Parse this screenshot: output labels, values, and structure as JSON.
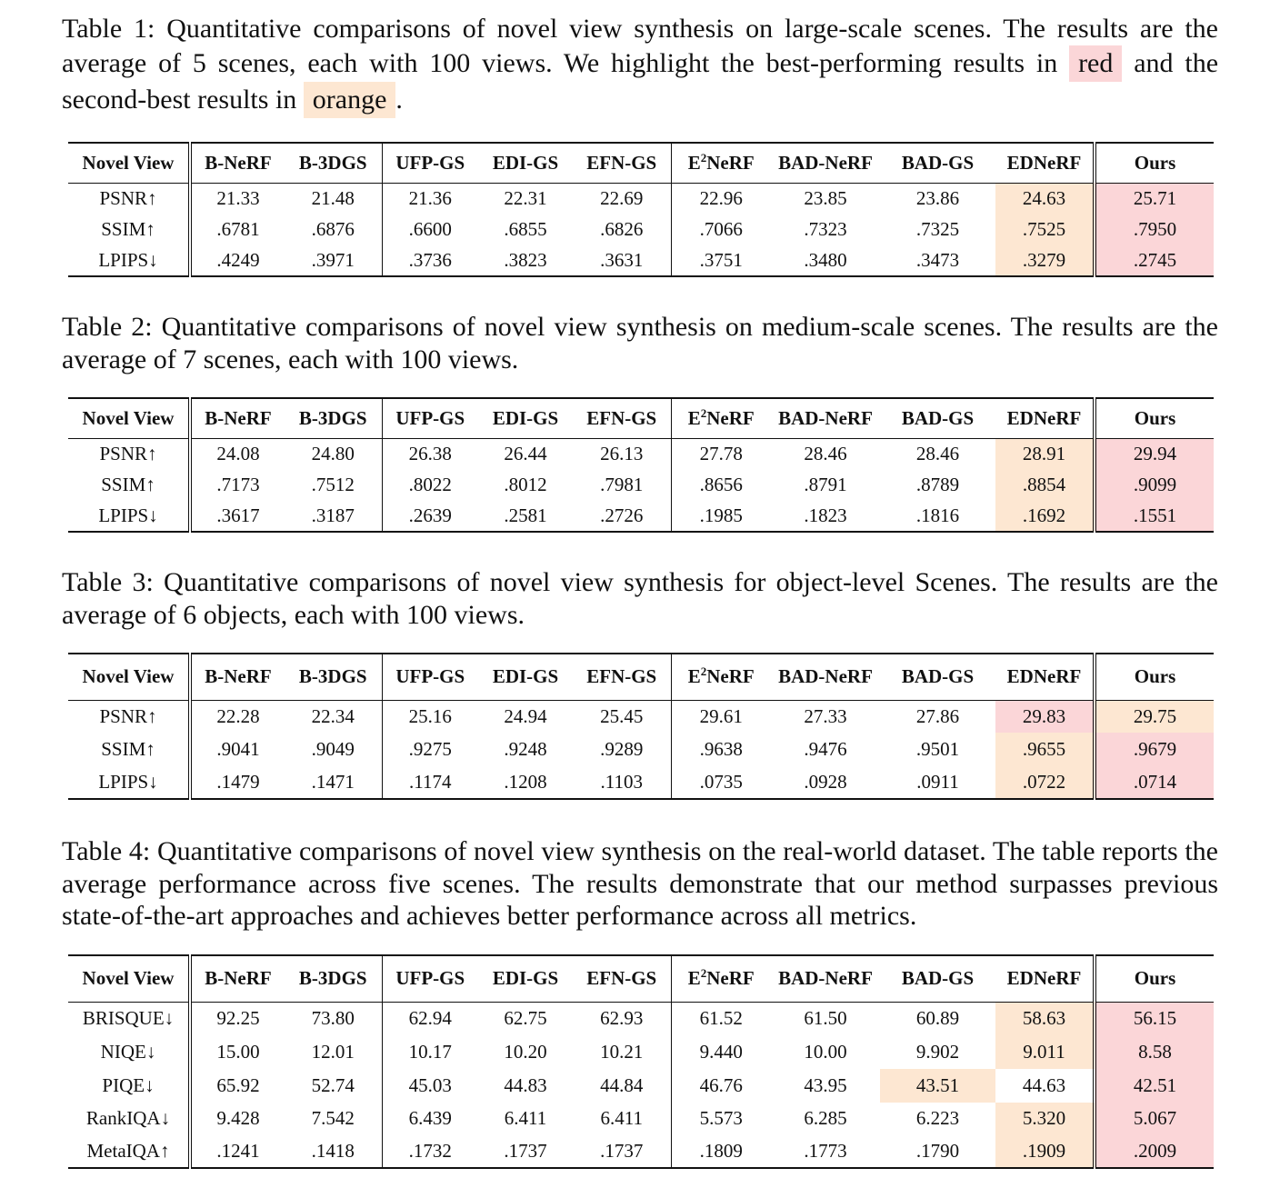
{
  "header": [
    "Novel View",
    "B-NeRF",
    "B-3DGS",
    "UFP-GS",
    "EDI-GS",
    "EFN-GS",
    "E2NeRF",
    "BAD-NeRF",
    "BAD-GS",
    "EDNeRF",
    "Ours"
  ],
  "legend": {
    "best_color": "#fbd6d8",
    "second_color": "#fde7d2"
  },
  "tables": [
    {
      "caption_before": "Table 1: Quantitative comparisons of novel view synthesis on large-scale scenes. The results are the average of 5 scenes, each with 100 views. We highlight the best-performing results in ",
      "caption_red": "red",
      "caption_mid": " and the second-best results in ",
      "caption_orange": "orange",
      "caption_after": ".",
      "rows": [
        {
          "metric": "PSNR↑",
          "values": [
            "21.33",
            "21.48",
            "21.36",
            "22.31",
            "22.69",
            "22.96",
            "23.85",
            "23.86",
            "24.63",
            "25.71"
          ]
        },
        {
          "metric": "SSIM↑",
          "values": [
            ".6781",
            ".6876",
            ".6600",
            ".6855",
            ".6826",
            ".7066",
            ".7323",
            ".7325",
            ".7525",
            ".7950"
          ]
        },
        {
          "metric": "LPIPS↓",
          "values": [
            ".4249",
            ".3971",
            ".3736",
            ".3823",
            ".3631",
            ".3751",
            ".3480",
            ".3473",
            ".3279",
            ".2745"
          ]
        }
      ],
      "highlights": [
        [
          "",
          "",
          "",
          "",
          "",
          "",
          "",
          "",
          "second",
          "best"
        ],
        [
          "",
          "",
          "",
          "",
          "",
          "",
          "",
          "",
          "second",
          "best"
        ],
        [
          "",
          "",
          "",
          "",
          "",
          "",
          "",
          "",
          "second",
          "best"
        ]
      ]
    },
    {
      "caption": "Table 2: Quantitative comparisons of novel view synthesis on medium-scale scenes. The results are the average of 7 scenes, each with 100 views.",
      "rows": [
        {
          "metric": "PSNR↑",
          "values": [
            "24.08",
            "24.80",
            "26.38",
            "26.44",
            "26.13",
            "27.78",
            "28.46",
            "28.46",
            "28.91",
            "29.94"
          ]
        },
        {
          "metric": "SSIM↑",
          "values": [
            ".7173",
            ".7512",
            ".8022",
            ".8012",
            ".7981",
            ".8656",
            ".8791",
            ".8789",
            ".8854",
            ".9099"
          ]
        },
        {
          "metric": "LPIPS↓",
          "values": [
            ".3617",
            ".3187",
            ".2639",
            ".2581",
            ".2726",
            ".1985",
            ".1823",
            ".1816",
            ".1692",
            ".1551"
          ]
        }
      ],
      "highlights": [
        [
          "",
          "",
          "",
          "",
          "",
          "",
          "",
          "",
          "second",
          "best"
        ],
        [
          "",
          "",
          "",
          "",
          "",
          "",
          "",
          "",
          "second",
          "best"
        ],
        [
          "",
          "",
          "",
          "",
          "",
          "",
          "",
          "",
          "second",
          "best"
        ]
      ]
    },
    {
      "caption": "Table 3: Quantitative comparisons of novel view synthesis for object-level Scenes. The results are the average of 6 objects, each with 100 views.",
      "rows": [
        {
          "metric": "PSNR↑",
          "values": [
            "22.28",
            "22.34",
            "25.16",
            "24.94",
            "25.45",
            "29.61",
            "27.33",
            "27.86",
            "29.83",
            "29.75"
          ]
        },
        {
          "metric": "SSIM↑",
          "values": [
            ".9041",
            ".9049",
            ".9275",
            ".9248",
            ".9289",
            ".9638",
            ".9476",
            ".9501",
            ".9655",
            ".9679"
          ]
        },
        {
          "metric": "LPIPS↓",
          "values": [
            ".1479",
            ".1471",
            ".1174",
            ".1208",
            ".1103",
            ".0735",
            ".0928",
            ".0911",
            ".0722",
            ".0714"
          ]
        }
      ],
      "highlights": [
        [
          "",
          "",
          "",
          "",
          "",
          "",
          "",
          "",
          "best",
          "second"
        ],
        [
          "",
          "",
          "",
          "",
          "",
          "",
          "",
          "",
          "second",
          "best"
        ],
        [
          "",
          "",
          "",
          "",
          "",
          "",
          "",
          "",
          "second",
          "best"
        ]
      ]
    },
    {
      "caption": "Table 4: Quantitative comparisons of novel view synthesis on the real-world dataset. The table reports the average performance across five scenes. The results demonstrate that our method surpasses previous state-of-the-art approaches and achieves better performance across all metrics.",
      "rows": [
        {
          "metric": "BRISQUE↓",
          "values": [
            "92.25",
            "73.80",
            "62.94",
            "62.75",
            "62.93",
            "61.52",
            "61.50",
            "60.89",
            "58.63",
            "56.15"
          ]
        },
        {
          "metric": "NIQE↓",
          "values": [
            "15.00",
            "12.01",
            "10.17",
            "10.20",
            "10.21",
            "9.440",
            "10.00",
            "9.902",
            "9.011",
            "8.58"
          ]
        },
        {
          "metric": "PIQE↓",
          "values": [
            "65.92",
            "52.74",
            "45.03",
            "44.83",
            "44.84",
            "46.76",
            "43.95",
            "43.51",
            "44.63",
            "42.51"
          ]
        },
        {
          "metric": "RankIQA↓",
          "values": [
            "9.428",
            "7.542",
            "6.439",
            "6.411",
            "6.411",
            "5.573",
            "6.285",
            "6.223",
            "5.320",
            "5.067"
          ]
        },
        {
          "metric": "MetaIQA↑",
          "values": [
            ".1241",
            ".1418",
            ".1732",
            ".1737",
            ".1737",
            ".1809",
            ".1773",
            ".1790",
            ".1909",
            ".2009"
          ]
        }
      ],
      "highlights": [
        [
          "",
          "",
          "",
          "",
          "",
          "",
          "",
          "",
          "second",
          "best"
        ],
        [
          "",
          "",
          "",
          "",
          "",
          "",
          "",
          "",
          "second",
          "best"
        ],
        [
          "",
          "",
          "",
          "",
          "",
          "",
          "",
          "second",
          "",
          "best"
        ],
        [
          "",
          "",
          "",
          "",
          "",
          "",
          "",
          "",
          "second",
          "best"
        ],
        [
          "",
          "",
          "",
          "",
          "",
          "",
          "",
          "",
          "second",
          "best"
        ]
      ]
    }
  ]
}
